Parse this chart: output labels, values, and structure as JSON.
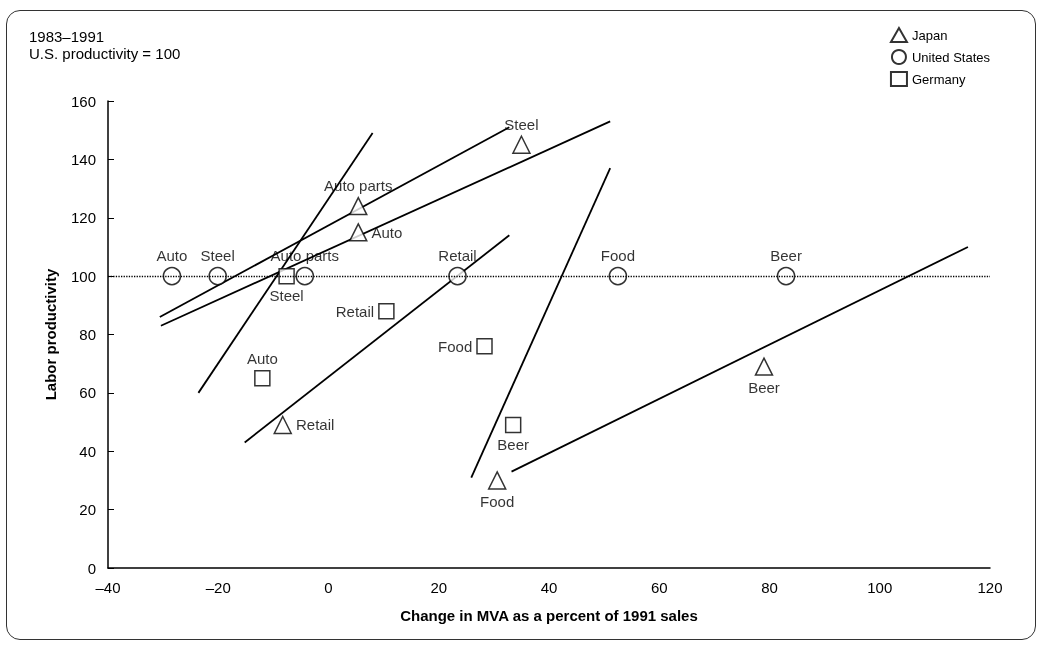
{
  "chart_data": {
    "type": "scatter",
    "title": "1983–1991",
    "subtitle": "U.S. productivity = 100",
    "xlabel": "Change in MVA as a percent of 1991 sales",
    "ylabel": "Labor productivity",
    "xlim": [
      -40,
      120
    ],
    "xticks": [
      {
        "value": -40,
        "label": "–40"
      },
      {
        "value": -20,
        "label": "–20"
      },
      0,
      20,
      40,
      60,
      80,
      100,
      120
    ],
    "ylim": [
      0,
      160
    ],
    "yticks": [
      0,
      20,
      40,
      60,
      80,
      100,
      120,
      140,
      160
    ],
    "grid": false,
    "legend": "top right",
    "ref_lines": [
      {
        "axis": "y",
        "value": 100,
        "line_style": "dotted",
        "color": "#000000"
      }
    ],
    "series": [
      {
        "name": "Japan",
        "marker": "triangle",
        "color": "#000000",
        "x": [
          35,
          5.4,
          5.4,
          -8.3,
          30.6,
          79
        ],
        "values": [
          145,
          124,
          115,
          49,
          30,
          69
        ],
        "value_labels": [
          "Steel",
          "Auto parts",
          "Auto",
          "Retail",
          "Food",
          "Beer"
        ]
      },
      {
        "name": "United States",
        "marker": "circle",
        "color": "#000000",
        "x": [
          -28.4,
          -20.1,
          -4.3,
          23.4,
          52.5,
          83
        ],
        "values": [
          100,
          100,
          100,
          100,
          100,
          100
        ],
        "value_labels": [
          "Auto",
          "Steel",
          "Auto parts",
          "Retail",
          "Food",
          "Beer"
        ]
      },
      {
        "name": "Germany",
        "marker": "square",
        "color": "#000000",
        "x": [
          -7.6,
          10.5,
          -12,
          28.3,
          33.5
        ],
        "values": [
          100,
          88,
          65,
          76,
          49
        ],
        "value_labels": [
          "Steel",
          "Retail",
          "Auto",
          "Food",
          "Beer"
        ]
      },
      {
        "type": "line",
        "marker": "none",
        "color": "#000000",
        "x": [
          -23.6,
          8
        ],
        "values": [
          60,
          149
        ]
      },
      {
        "type": "line",
        "marker": "none",
        "color": "#000000",
        "x": [
          -30.6,
          32.8
        ],
        "values": [
          86,
          151
        ]
      },
      {
        "type": "line",
        "marker": "none",
        "color": "#000000",
        "x": [
          -30.4,
          51.1
        ],
        "values": [
          83,
          153
        ]
      },
      {
        "type": "line",
        "marker": "none",
        "color": "#000000",
        "x": [
          -15.2,
          32.8
        ],
        "values": [
          43,
          114
        ]
      },
      {
        "type": "line",
        "marker": "none",
        "color": "#000000",
        "x": [
          25.9,
          51.1
        ],
        "values": [
          31,
          137
        ]
      },
      {
        "type": "line",
        "marker": "none",
        "color": "#000000",
        "x": [
          33.2,
          116
        ],
        "values": [
          33,
          110
        ]
      }
    ]
  }
}
